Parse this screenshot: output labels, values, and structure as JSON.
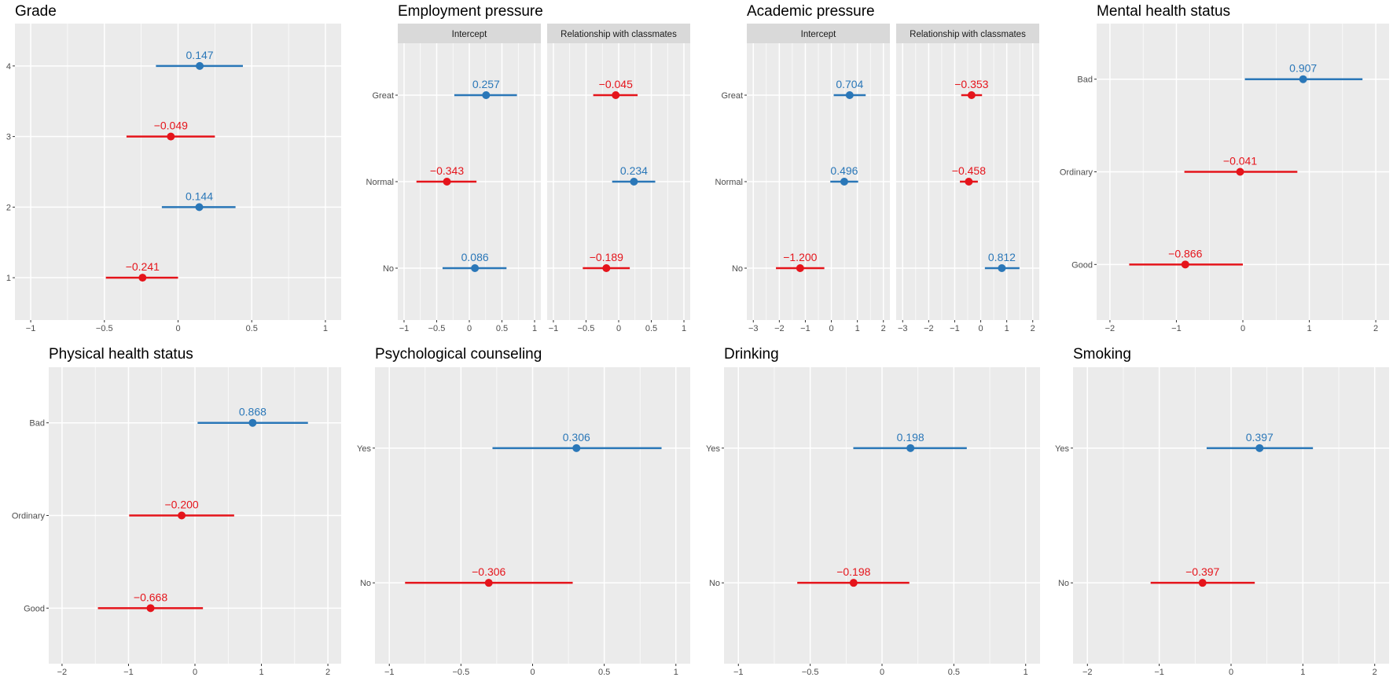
{
  "colors": {
    "positive": "#2a77b8",
    "negative": "#e5141b",
    "panel_bg": "#ebebeb",
    "strip_bg": "#d9d9d9",
    "grid": "#ffffff",
    "axis_text": "#4d4d4d",
    "tick": "#333333"
  },
  "chart_data": [
    {
      "type": "forest",
      "title": "Grade",
      "categories": [
        "4",
        "3",
        "2",
        "1"
      ],
      "facets": [
        {
          "strip": null,
          "xlim": [
            -1.107,
            1.107
          ],
          "x_ticks": [
            -1,
            -0.5,
            0,
            0.5,
            1
          ],
          "x_tick_labels": [
            "−1",
            "−0.5",
            "0",
            "0.5",
            "1"
          ],
          "points": [
            {
              "category": "4",
              "estimate": 0.147,
              "ci_low": -0.15,
              "ci_high": 0.44,
              "label": "0.147"
            },
            {
              "category": "3",
              "estimate": -0.049,
              "ci_low": -0.35,
              "ci_high": 0.25,
              "label": "−0.049"
            },
            {
              "category": "2",
              "estimate": 0.144,
              "ci_low": -0.11,
              "ci_high": 0.39,
              "label": "0.144"
            },
            {
              "category": "1",
              "estimate": -0.241,
              "ci_low": -0.49,
              "ci_high": 0.0,
              "label": "−0.241"
            }
          ]
        }
      ]
    },
    {
      "type": "forest",
      "title": "Employment pressure",
      "categories": [
        "Great",
        "Normal",
        "No"
      ],
      "facets": [
        {
          "strip": "Intercept",
          "xlim": [
            -1.096,
            1.096
          ],
          "x_ticks": [
            -1,
            -0.5,
            0,
            0.5,
            1
          ],
          "x_tick_labels": [
            "−1",
            "−0.5",
            "0",
            "0.5",
            "1"
          ],
          "points": [
            {
              "category": "Great",
              "estimate": 0.257,
              "ci_low": -0.23,
              "ci_high": 0.73,
              "label": "0.257"
            },
            {
              "category": "Normal",
              "estimate": -0.343,
              "ci_low": -0.81,
              "ci_high": 0.11,
              "label": "−0.343"
            },
            {
              "category": "No",
              "estimate": 0.086,
              "ci_low": -0.41,
              "ci_high": 0.57,
              "label": "0.086"
            }
          ]
        },
        {
          "strip": "Relationship with classmates",
          "xlim": [
            -1.096,
            1.096
          ],
          "x_ticks": [
            -1,
            -0.5,
            0,
            0.5,
            1
          ],
          "x_tick_labels": [
            "−1",
            "−0.5",
            "0",
            "0.5",
            "1"
          ],
          "points": [
            {
              "category": "Great",
              "estimate": -0.045,
              "ci_low": -0.39,
              "ci_high": 0.29,
              "label": "−0.045"
            },
            {
              "category": "Normal",
              "estimate": 0.234,
              "ci_low": -0.1,
              "ci_high": 0.56,
              "label": "0.234"
            },
            {
              "category": "No",
              "estimate": -0.189,
              "ci_low": -0.55,
              "ci_high": 0.17,
              "label": "−0.189"
            }
          ]
        }
      ]
    },
    {
      "type": "forest",
      "title": "Academic pressure",
      "categories": [
        "Great",
        "Normal",
        "No"
      ],
      "facets": [
        {
          "strip": "Intercept",
          "xlim": [
            -3.25,
            2.25
          ],
          "x_ticks": [
            -3,
            -2,
            -1,
            0,
            1,
            2
          ],
          "x_tick_labels": [
            "−3",
            "−2",
            "−1",
            "0",
            "1",
            "2"
          ],
          "points": [
            {
              "category": "Great",
              "estimate": 0.704,
              "ci_low": 0.09,
              "ci_high": 1.32,
              "label": "0.704"
            },
            {
              "category": "Normal",
              "estimate": 0.496,
              "ci_low": -0.04,
              "ci_high": 1.03,
              "label": "0.496"
            },
            {
              "category": "No",
              "estimate": -1.2,
              "ci_low": -2.13,
              "ci_high": -0.27,
              "label": "−1.200"
            }
          ]
        },
        {
          "strip": "Relationship with classmates",
          "xlim": [
            -3.25,
            2.25
          ],
          "x_ticks": [
            -3,
            -2,
            -1,
            0,
            1,
            2
          ],
          "x_tick_labels": [
            "−3",
            "−2",
            "−1",
            "0",
            "1",
            "2"
          ],
          "points": [
            {
              "category": "Great",
              "estimate": -0.353,
              "ci_low": -0.75,
              "ci_high": 0.05,
              "label": "−0.353"
            },
            {
              "category": "Normal",
              "estimate": -0.458,
              "ci_low": -0.8,
              "ci_high": -0.11,
              "label": "−0.458"
            },
            {
              "category": "No",
              "estimate": 0.812,
              "ci_low": 0.16,
              "ci_high": 1.49,
              "label": "0.812"
            }
          ]
        }
      ]
    },
    {
      "type": "forest",
      "title": "Mental health status",
      "categories": [
        "Bad",
        "Ordinary",
        "Good"
      ],
      "facets": [
        {
          "strip": null,
          "xlim": [
            -2.2,
            2.2
          ],
          "x_ticks": [
            -2,
            -1,
            0,
            1,
            2
          ],
          "x_tick_labels": [
            "−2",
            "−1",
            "0",
            "1",
            "2"
          ],
          "points": [
            {
              "category": "Bad",
              "estimate": 0.907,
              "ci_low": 0.03,
              "ci_high": 1.8,
              "label": "0.907"
            },
            {
              "category": "Ordinary",
              "estimate": -0.041,
              "ci_low": -0.88,
              "ci_high": 0.82,
              "label": "−0.041"
            },
            {
              "category": "Good",
              "estimate": -0.866,
              "ci_low": -1.71,
              "ci_high": 0.0,
              "label": "−0.866"
            }
          ]
        }
      ]
    },
    {
      "type": "forest",
      "title": "Physical health status",
      "categories": [
        "Bad",
        "Ordinary",
        "Good"
      ],
      "facets": [
        {
          "strip": null,
          "xlim": [
            -2.2,
            2.2
          ],
          "x_ticks": [
            -2,
            -1,
            0,
            1,
            2
          ],
          "x_tick_labels": [
            "−2",
            "−1",
            "0",
            "1",
            "2"
          ],
          "points": [
            {
              "category": "Bad",
              "estimate": 0.868,
              "ci_low": 0.04,
              "ci_high": 1.7,
              "label": "0.868"
            },
            {
              "category": "Ordinary",
              "estimate": -0.2,
              "ci_low": -0.99,
              "ci_high": 0.59,
              "label": "−0.200"
            },
            {
              "category": "Good",
              "estimate": -0.668,
              "ci_low": -1.46,
              "ci_high": 0.12,
              "label": "−0.668"
            }
          ]
        }
      ]
    },
    {
      "type": "forest",
      "title": "Psychological counseling",
      "categories": [
        "Yes",
        "No"
      ],
      "facets": [
        {
          "strip": null,
          "xlim": [
            -1.1,
            1.1
          ],
          "x_ticks": [
            -1,
            -0.5,
            0,
            0.5,
            1
          ],
          "x_tick_labels": [
            "−1",
            "−0.5",
            "0",
            "0.5",
            "1"
          ],
          "points": [
            {
              "category": "Yes",
              "estimate": 0.306,
              "ci_low": -0.28,
              "ci_high": 0.9,
              "label": "0.306"
            },
            {
              "category": "No",
              "estimate": -0.306,
              "ci_low": -0.89,
              "ci_high": 0.28,
              "label": "−0.306"
            }
          ]
        }
      ]
    },
    {
      "type": "forest",
      "title": "Drinking",
      "categories": [
        "Yes",
        "No"
      ],
      "facets": [
        {
          "strip": null,
          "xlim": [
            -1.1,
            1.1
          ],
          "x_ticks": [
            -1,
            -0.5,
            0,
            0.5,
            1
          ],
          "x_tick_labels": [
            "−1",
            "−0.5",
            "0",
            "0.5",
            "1"
          ],
          "points": [
            {
              "category": "Yes",
              "estimate": 0.198,
              "ci_low": -0.2,
              "ci_high": 0.59,
              "label": "0.198"
            },
            {
              "category": "No",
              "estimate": -0.198,
              "ci_low": -0.59,
              "ci_high": 0.19,
              "label": "−0.198"
            }
          ]
        }
      ]
    },
    {
      "type": "forest",
      "title": "Smoking",
      "categories": [
        "Yes",
        "No"
      ],
      "facets": [
        {
          "strip": null,
          "xlim": [
            -2.2,
            2.2
          ],
          "x_ticks": [
            -2,
            -1,
            0,
            1,
            2
          ],
          "x_tick_labels": [
            "−2",
            "−1",
            "0",
            "1",
            "2"
          ],
          "points": [
            {
              "category": "Yes",
              "estimate": 0.397,
              "ci_low": -0.34,
              "ci_high": 1.14,
              "label": "0.397"
            },
            {
              "category": "No",
              "estimate": -0.397,
              "ci_low": -1.12,
              "ci_high": 0.33,
              "label": "−0.397"
            }
          ]
        }
      ]
    }
  ]
}
